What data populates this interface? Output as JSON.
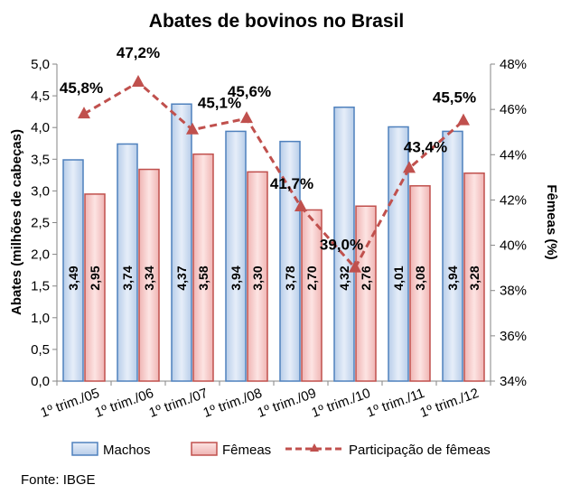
{
  "chart_data": {
    "type": "bar",
    "title": "Abates de bovinos no Brasil",
    "ylabel": "Abates (milhões de cabeças)",
    "y2label": "Fêmeas (%)",
    "ylim": [
      0,
      5.0
    ],
    "y2lim": [
      34,
      48
    ],
    "yticks": [
      "0,0",
      "0,5",
      "1,0",
      "1,5",
      "2,0",
      "2,5",
      "3,0",
      "3,5",
      "4,0",
      "4,5",
      "5,0"
    ],
    "y2ticks": [
      "34%",
      "36%",
      "38%",
      "40%",
      "42%",
      "44%",
      "46%",
      "48%"
    ],
    "categories": [
      "1º trim./05",
      "1º trim./06",
      "1º trim./07",
      "1º trim./08",
      "1º trim./09",
      "1º trim./10",
      "1º trim./11",
      "1º trim./12"
    ],
    "series": [
      {
        "name": "Machos",
        "type": "bar",
        "axis": "left",
        "values": [
          3.49,
          3.74,
          4.37,
          3.94,
          3.78,
          4.32,
          4.01,
          3.94
        ],
        "labels": [
          "3,49",
          "3,74",
          "4,37",
          "3,94",
          "3,78",
          "4,32",
          "4,01",
          "3,94"
        ],
        "color": "#4f81bd"
      },
      {
        "name": "Fêmeas",
        "type": "bar",
        "axis": "left",
        "values": [
          2.95,
          3.34,
          3.58,
          3.3,
          2.7,
          2.76,
          3.08,
          3.28
        ],
        "labels": [
          "2,95",
          "3,34",
          "3,58",
          "3,30",
          "2,70",
          "2,76",
          "3,08",
          "3,28"
        ],
        "color": "#c0504d"
      },
      {
        "name": "Participação de fêmeas",
        "type": "line",
        "axis": "right",
        "values": [
          45.8,
          47.2,
          45.1,
          45.6,
          41.7,
          39.0,
          43.4,
          45.5
        ],
        "labels": [
          "45,8%",
          "47,2%",
          "45,1%",
          "45,6%",
          "41,7%",
          "39,0%",
          "43,4%",
          "45,5%"
        ],
        "color": "#c0504d"
      }
    ],
    "grid": false,
    "legend_position": "bottom",
    "source": "Fonte: IBGE"
  }
}
